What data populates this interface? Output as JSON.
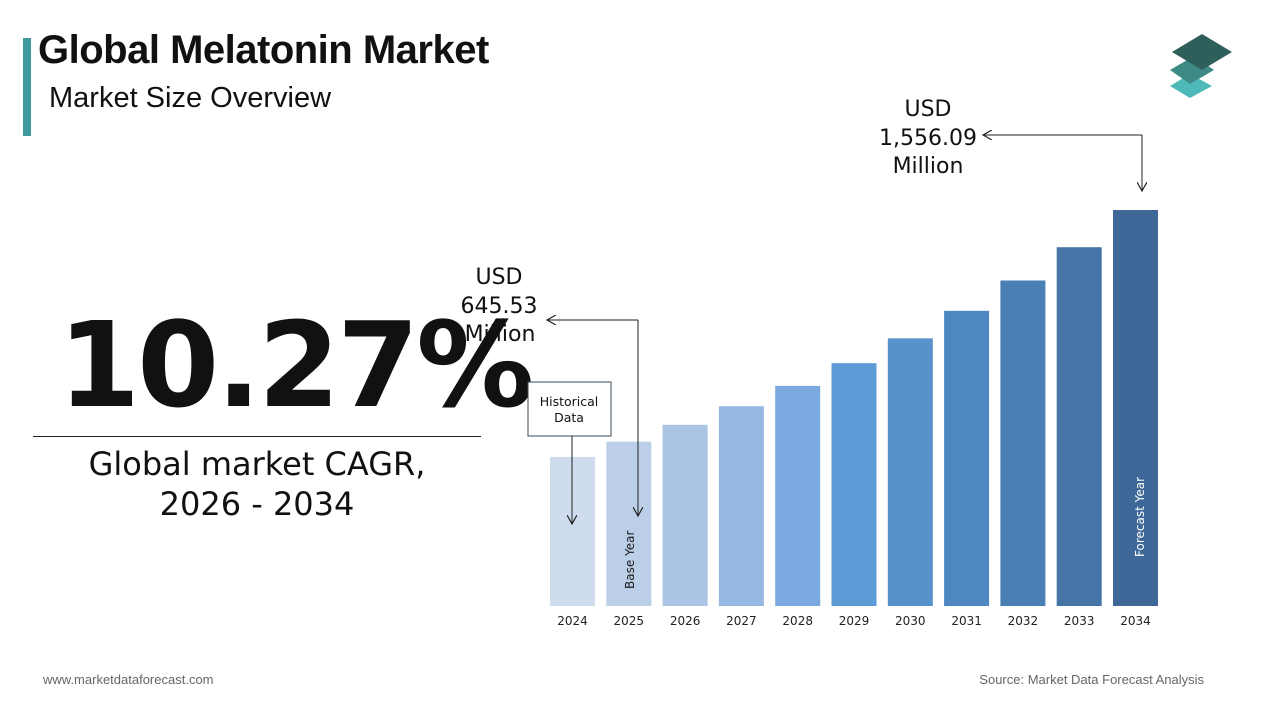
{
  "header": {
    "title": "Global Melatonin Market",
    "subtitle": "Market Size Overview"
  },
  "cagr": {
    "value": "10.27%",
    "label_line1": "Global market CAGR,",
    "label_line2": "2026 - 2034"
  },
  "footer": {
    "website": "www.marketdataforecast.com",
    "source": "Source: Market Data Forecast Analysis"
  },
  "colors": {
    "accent": "#3e9a9c",
    "logo_top": "#2f5f5a",
    "logo_mid": "#3e8a86",
    "logo_bottom": "#4fb8b8"
  },
  "chart_data": {
    "type": "bar",
    "categories": [
      "2024",
      "2025",
      "2026",
      "2027",
      "2028",
      "2029",
      "2030",
      "2031",
      "2032",
      "2033",
      "2034"
    ],
    "values": [
      586,
      645.53,
      712,
      785,
      865,
      954,
      1052,
      1160,
      1279,
      1410,
      1556.09
    ],
    "bar_colors": [
      "#cfdcee",
      "#bccfe8",
      "#aac4e4",
      "#96b8e0",
      "#79a9de",
      "#5d9bd7",
      "#5792cd",
      "#4f88c0",
      "#4a7fb4",
      "#4575a7",
      "#3e6897"
    ],
    "callouts": [
      {
        "line1": "USD",
        "line2": "645.53",
        "line3": "Million"
      },
      {
        "line1": "USD",
        "line2": "1,556.09",
        "line3": "Million"
      }
    ],
    "annotations": {
      "historical": {
        "line1": "Historical",
        "line2": "Data"
      },
      "base_year": "Base Year",
      "forecast_year": "Forecast Year"
    }
  }
}
